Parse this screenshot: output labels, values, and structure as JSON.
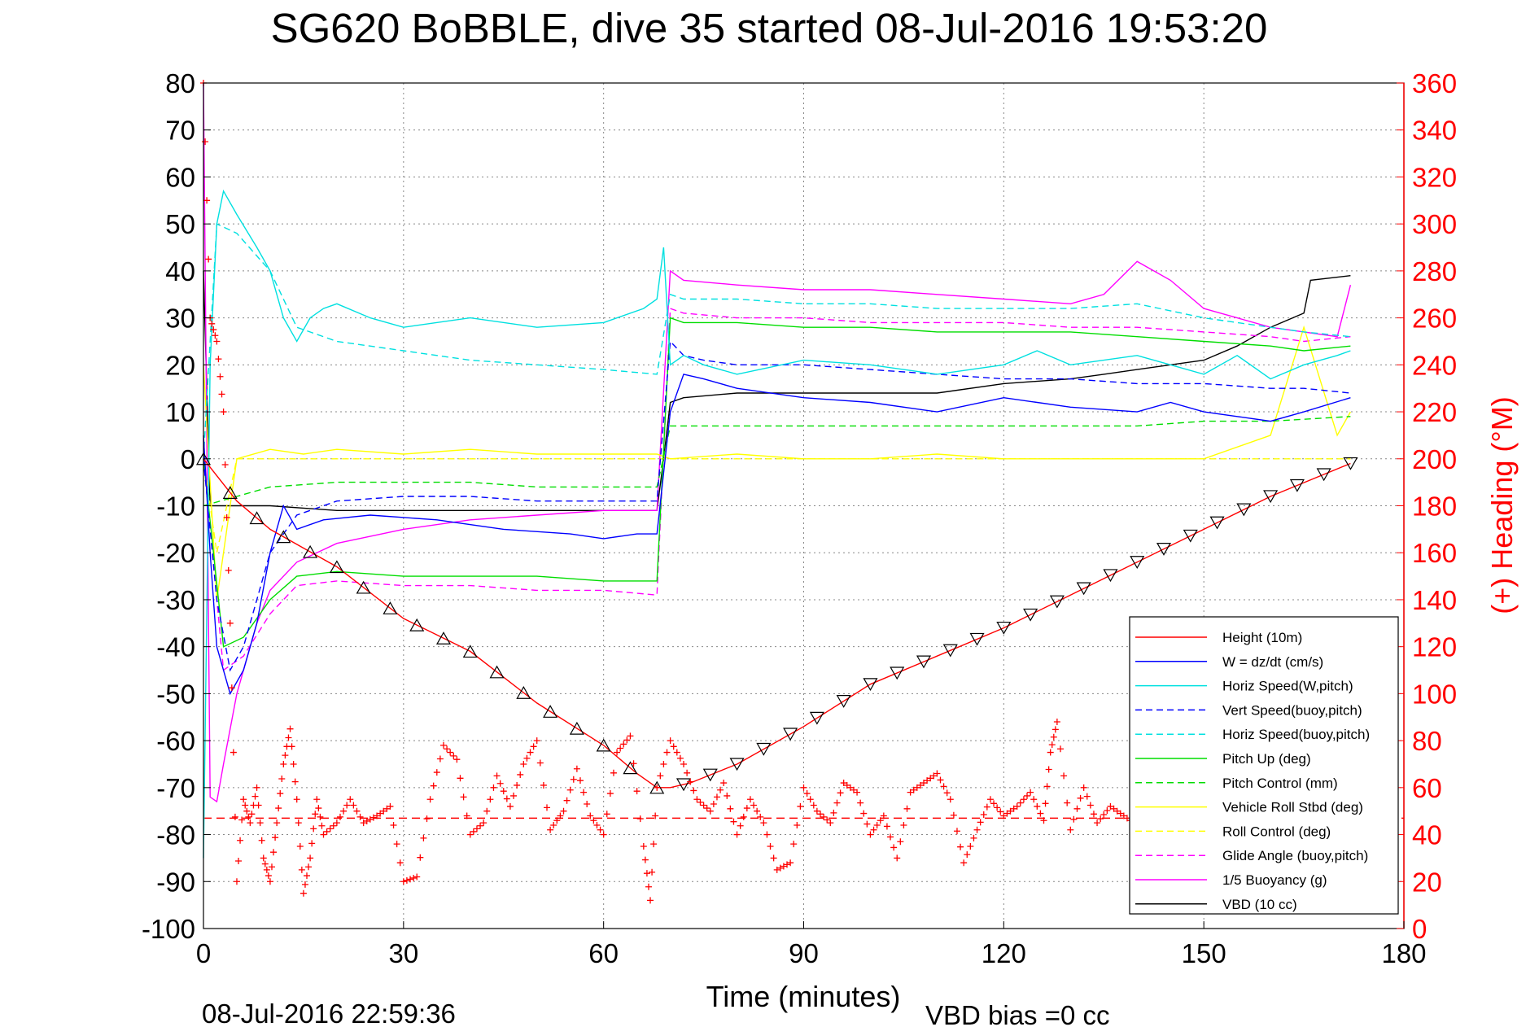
{
  "chart_data": {
    "type": "line",
    "title": "SG620 BoBBLE, dive 35 started 08-Jul-2016 19:53:20",
    "xlabel": "Time (minutes)",
    "ylabel": "",
    "y2label": "(+) Heading (°M)",
    "xlim": [
      0,
      180
    ],
    "ylim": [
      -100,
      80
    ],
    "y2lim": [
      0,
      360
    ],
    "xticks": [
      "0",
      "30",
      "60",
      "90",
      "120",
      "150",
      "180"
    ],
    "yticks": [
      "80",
      "70",
      "60",
      "50",
      "40",
      "30",
      "20",
      "10",
      "0",
      "-10",
      "-20",
      "-30",
      "-40",
      "-50",
      "-60",
      "-70",
      "-80",
      "-90",
      "-100"
    ],
    "y2ticks": [
      "360",
      "340",
      "320",
      "300",
      "280",
      "260",
      "240",
      "220",
      "200",
      "180",
      "160",
      "140",
      "120",
      "100",
      "80",
      "60",
      "40",
      "20",
      "0"
    ],
    "grid": true,
    "legend_position": "bottom-right",
    "footer_left": "08-Jul-2016 22:59:36",
    "footer_right": "VBD bias =0 cc",
    "colors": {
      "height": "#ff0000",
      "w": "#0000ff",
      "horiz_speed": "#00e0e0",
      "pitch": "#00dd00",
      "roll": "#ffff00",
      "glide": "#ff00ff",
      "vbd": "#000000"
    },
    "series": [
      {
        "name": "Height (10m)",
        "color": "#ff0000",
        "dash": false,
        "x": [
          0,
          5,
          10,
          15,
          20,
          30,
          40,
          50,
          60,
          65,
          68,
          70,
          73,
          80,
          90,
          100,
          110,
          120,
          130,
          140,
          150,
          160,
          172
        ],
        "y": [
          0,
          -9,
          -15,
          -19,
          -23,
          -34,
          -41,
          -52,
          -61,
          -67,
          -70,
          -70,
          -69,
          -65,
          -57,
          -48,
          -42,
          -36,
          -29,
          -22,
          -15,
          -8,
          -1
        ]
      },
      {
        "name": "W = dz/dt (cm/s)",
        "color": "#0000ff",
        "dash": false,
        "x": [
          0,
          1,
          2,
          4,
          6,
          8,
          10,
          12,
          14,
          18,
          25,
          35,
          45,
          55,
          60,
          65,
          68,
          70,
          72,
          75,
          80,
          90,
          100,
          110,
          120,
          130,
          140,
          145,
          150,
          155,
          160,
          165,
          172
        ],
        "y": [
          5,
          -20,
          -40,
          -50,
          -45,
          -35,
          -20,
          -10,
          -15,
          -13,
          -12,
          -13,
          -15,
          -16,
          -17,
          -16,
          -16,
          10,
          18,
          17,
          15,
          13,
          12,
          10,
          13,
          11,
          10,
          12,
          10,
          9,
          8,
          10,
          13
        ]
      },
      {
        "name": "Horiz Speed(W,pitch)",
        "color": "#00e0e0",
        "dash": false,
        "x": [
          0,
          1,
          2,
          3,
          5,
          8,
          10,
          12,
          14,
          16,
          18,
          20,
          25,
          30,
          40,
          50,
          60,
          66,
          68,
          69,
          70,
          72,
          75,
          80,
          90,
          100,
          110,
          120,
          125,
          130,
          140,
          145,
          150,
          155,
          160,
          165,
          170,
          172
        ],
        "y": [
          -85,
          20,
          50,
          57,
          52,
          45,
          40,
          30,
          25,
          30,
          32,
          33,
          30,
          28,
          30,
          28,
          29,
          32,
          34,
          45,
          20,
          22,
          20,
          18,
          21,
          20,
          18,
          20,
          23,
          20,
          22,
          20,
          18,
          22,
          17,
          20,
          22,
          23
        ]
      },
      {
        "name": "Vert Speed(buoy,pitch)",
        "color": "#0000ff",
        "dash": true,
        "x": [
          0,
          2,
          4,
          6,
          8,
          10,
          14,
          20,
          30,
          40,
          50,
          60,
          68,
          70,
          72,
          75,
          80,
          90,
          100,
          110,
          120,
          130,
          140,
          150,
          160,
          165,
          172
        ],
        "y": [
          0,
          -30,
          -45,
          -40,
          -30,
          -20,
          -12,
          -9,
          -8,
          -8,
          -9,
          -9,
          -9,
          25,
          22,
          21,
          20,
          20,
          19,
          18,
          17,
          17,
          16,
          16,
          15,
          15,
          14
        ]
      },
      {
        "name": "Horiz Speed(buoy,pitch)",
        "color": "#00e0e0",
        "dash": true,
        "x": [
          0,
          2,
          5,
          10,
          14,
          20,
          30,
          40,
          50,
          60,
          68,
          70,
          72,
          80,
          90,
          100,
          110,
          120,
          130,
          140,
          150,
          160,
          165,
          172
        ],
        "y": [
          0,
          50,
          48,
          40,
          28,
          25,
          23,
          21,
          20,
          19,
          18,
          35,
          34,
          34,
          33,
          33,
          32,
          32,
          32,
          33,
          30,
          28,
          27,
          26
        ]
      },
      {
        "name": "Pitch Up (deg)",
        "color": "#00dd00",
        "dash": false,
        "x": [
          0,
          3,
          6,
          10,
          14,
          20,
          30,
          40,
          50,
          60,
          68,
          70,
          72,
          80,
          90,
          100,
          110,
          120,
          130,
          140,
          150,
          160,
          165,
          172
        ],
        "y": [
          0,
          -40,
          -38,
          -30,
          -25,
          -24,
          -25,
          -25,
          -25,
          -26,
          -26,
          30,
          29,
          29,
          28,
          28,
          27,
          27,
          27,
          26,
          25,
          24,
          23,
          24
        ]
      },
      {
        "name": "Pitch Control (mm)",
        "color": "#00dd00",
        "dash": true,
        "x": [
          0,
          5,
          10,
          20,
          30,
          40,
          50,
          60,
          68,
          70,
          72,
          80,
          90,
          100,
          110,
          120,
          130,
          140,
          150,
          160,
          172
        ],
        "y": [
          -10,
          -8,
          -6,
          -5,
          -5,
          -5,
          -6,
          -6,
          -6,
          7,
          7,
          7,
          7,
          7,
          7,
          7,
          7,
          7,
          8,
          8,
          9
        ]
      },
      {
        "name": "Vehicle Roll Stbd (deg)",
        "color": "#ffff00",
        "dash": false,
        "x": [
          0,
          2,
          5,
          10,
          15,
          20,
          30,
          40,
          50,
          60,
          68,
          70,
          80,
          90,
          100,
          110,
          120,
          130,
          140,
          150,
          160,
          165,
          170,
          172
        ],
        "y": [
          20,
          -30,
          0,
          2,
          1,
          2,
          1,
          2,
          1,
          1,
          1,
          0,
          1,
          0,
          0,
          1,
          0,
          0,
          0,
          0,
          5,
          28,
          5,
          10
        ]
      },
      {
        "name": "Roll Control (deg)",
        "color": "#ffff00",
        "dash": true,
        "x": [
          0,
          2,
          5,
          10,
          20,
          30,
          40,
          50,
          60,
          68,
          70,
          80,
          90,
          100,
          110,
          120,
          130,
          140,
          150,
          160,
          172
        ],
        "y": [
          0,
          -20,
          0,
          0,
          0,
          0,
          0,
          0,
          0,
          0,
          0,
          0,
          0,
          0,
          0,
          0,
          0,
          0,
          0,
          0,
          0
        ]
      },
      {
        "name": "Glide Angle (buoy,pitch)",
        "color": "#ff00ff",
        "dash": true,
        "x": [
          0,
          3,
          6,
          10,
          14,
          20,
          30,
          40,
          50,
          60,
          68,
          70,
          72,
          80,
          90,
          100,
          110,
          120,
          130,
          140,
          150,
          160,
          165,
          172
        ],
        "y": [
          0,
          -45,
          -42,
          -33,
          -27,
          -26,
          -27,
          -27,
          -28,
          -28,
          -29,
          32,
          31,
          30,
          30,
          29,
          29,
          29,
          28,
          28,
          27,
          26,
          25,
          26
        ]
      },
      {
        "name": "1/5 Buoyancy (g)",
        "color": "#ff00ff",
        "dash": false,
        "x": [
          0,
          1,
          2,
          3,
          5,
          8,
          10,
          14,
          20,
          30,
          40,
          50,
          60,
          68,
          70,
          72,
          80,
          90,
          100,
          110,
          120,
          130,
          135,
          140,
          145,
          150,
          155,
          160,
          165,
          170,
          172
        ],
        "y": [
          80,
          -72,
          -73,
          -65,
          -50,
          -35,
          -28,
          -22,
          -18,
          -15,
          -13,
          -12,
          -11,
          -11,
          40,
          38,
          37,
          36,
          36,
          35,
          34,
          33,
          35,
          42,
          38,
          32,
          30,
          28,
          27,
          26,
          37
        ]
      },
      {
        "name": "VBD (10 cc)",
        "color": "#000000",
        "dash": false,
        "x": [
          0,
          1,
          2,
          5,
          10,
          20,
          30,
          40,
          50,
          60,
          68,
          69,
          70,
          72,
          80,
          90,
          100,
          110,
          120,
          130,
          135,
          140,
          150,
          155,
          160,
          165,
          166,
          172
        ],
        "y": [
          40,
          -10,
          -10,
          -10,
          -10,
          -11,
          -11,
          -11,
          -11,
          -11,
          -11,
          0,
          12,
          13,
          14,
          14,
          14,
          14,
          16,
          17,
          18,
          19,
          21,
          24,
          28,
          31,
          38,
          39
        ]
      }
    ],
    "heading_series": {
      "name": "(+) Heading (°M)",
      "color": "#ff0000",
      "axis": "right",
      "x": [
        0,
        1,
        2,
        3,
        4,
        5,
        6,
        7,
        8,
        9,
        10,
        11,
        12,
        13,
        14,
        15,
        16,
        17,
        18,
        20,
        22,
        24,
        26,
        28,
        30,
        32,
        34,
        36,
        38,
        40,
        42,
        44,
        46,
        48,
        50,
        52,
        54,
        56,
        58,
        60,
        62,
        64,
        66,
        67,
        68,
        70,
        72,
        74,
        76,
        78,
        80,
        82,
        84,
        86,
        88,
        90,
        92,
        94,
        96,
        98,
        100,
        102,
        104,
        106,
        108,
        110,
        112,
        114,
        116,
        118,
        120,
        122,
        124,
        126,
        127,
        128,
        130,
        132,
        134,
        136,
        138,
        140,
        142,
        144,
        146,
        148,
        150,
        152,
        154,
        156,
        158,
        160,
        162,
        164,
        165,
        166,
        168,
        170,
        172
      ],
      "y": [
        360,
        260,
        250,
        220,
        130,
        20,
        55,
        45,
        60,
        30,
        20,
        45,
        70,
        85,
        55,
        15,
        30,
        55,
        40,
        45,
        55,
        45,
        48,
        52,
        20,
        22,
        55,
        78,
        72,
        40,
        45,
        65,
        52,
        70,
        80,
        42,
        50,
        68,
        48,
        40,
        75,
        82,
        35,
        12,
        60,
        80,
        70,
        55,
        50,
        62,
        40,
        55,
        45,
        25,
        28,
        60,
        50,
        45,
        62,
        58,
        40,
        48,
        30,
        58,
        62,
        66,
        55,
        28,
        42,
        55,
        48,
        52,
        58,
        46,
        75,
        88,
        42,
        60,
        45,
        52,
        48,
        44,
        52,
        48,
        44,
        52,
        48,
        44,
        52,
        48,
        44,
        52,
        48,
        44,
        52,
        48,
        44,
        52,
        48
      ]
    },
    "heading_mean": 47
  }
}
